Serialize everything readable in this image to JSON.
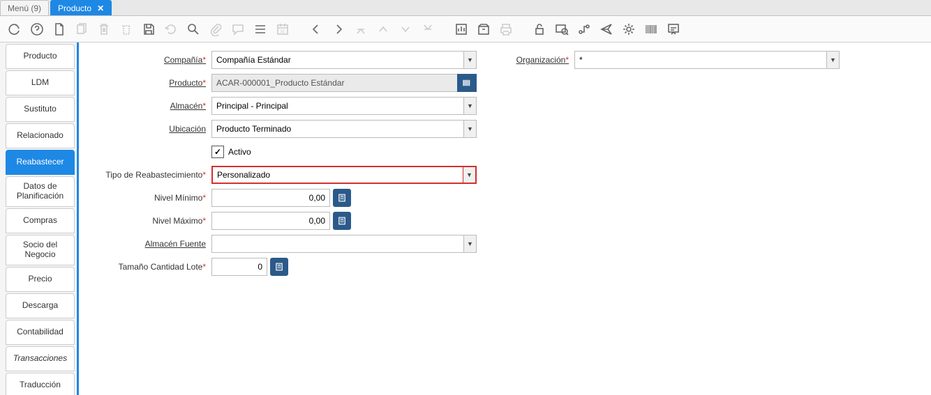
{
  "tabs": {
    "menu": "Menú (9)",
    "active": "Producto"
  },
  "sidetabs": [
    {
      "label": "Producto",
      "active": false
    },
    {
      "label": "LDM",
      "active": false
    },
    {
      "label": "Sustituto",
      "active": false
    },
    {
      "label": "Relacionado",
      "active": false
    },
    {
      "label": "Reabastecer",
      "active": true
    },
    {
      "label": "Datos de Planificación",
      "active": false,
      "tall": true
    },
    {
      "label": "Compras",
      "active": false
    },
    {
      "label": "Socio del Negocio",
      "active": false,
      "tall": true
    },
    {
      "label": "Precio",
      "active": false
    },
    {
      "label": "Descarga",
      "active": false
    },
    {
      "label": "Contabilidad",
      "active": false
    },
    {
      "label": "Transacciones",
      "active": false,
      "italic": true
    },
    {
      "label": "Traducción",
      "active": false
    }
  ],
  "fields": {
    "compania": {
      "label": "Compañía",
      "value": "Compañía Estándar"
    },
    "organizacion": {
      "label": "Organización",
      "value": "*"
    },
    "producto": {
      "label": "Producto",
      "value": "ACAR-000001_Producto Estándar"
    },
    "almacen": {
      "label": "Almacén",
      "value": "Principal - Principal"
    },
    "ubicacion": {
      "label": "Ubicación",
      "value": "Producto Terminado"
    },
    "activo": {
      "label": "Activo",
      "checked": true
    },
    "tipo": {
      "label": "Tipo de Reabastecimiento",
      "value": "Personalizado"
    },
    "nivelmin": {
      "label": "Nivel Mínimo",
      "value": "0,00"
    },
    "nivelmax": {
      "label": "Nivel Máximo",
      "value": "0,00"
    },
    "almacenfuente": {
      "label": "Almacén Fuente",
      "value": ""
    },
    "tamlote": {
      "label": "Tamaño Cantidad Lote",
      "value": "0"
    }
  }
}
